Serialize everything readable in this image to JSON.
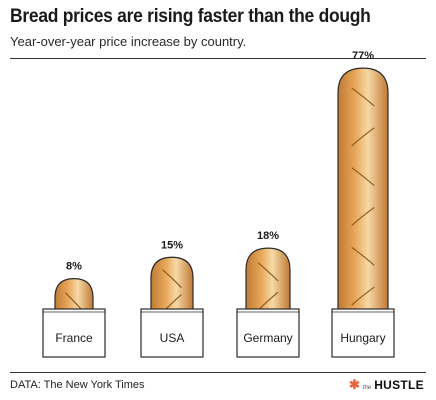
{
  "chart_data": {
    "type": "bar",
    "title": "Bread prices are rising faster than the dough",
    "subtitle": "Year-over-year price increase by country.",
    "categories": [
      "France",
      "USA",
      "Germany",
      "Hungary"
    ],
    "values": [
      8,
      15,
      18,
      77
    ],
    "value_labels": [
      "8%",
      "15%",
      "18%",
      "77%"
    ],
    "unit": "%",
    "xlabel": "",
    "ylabel": "",
    "grid": false,
    "colors": {
      "bread": "#e9a85a",
      "bread_dark": "#c07a35",
      "bread_light": "#f6d9a6",
      "outline": "#2b2b2b"
    }
  },
  "footer": {
    "source": "DATA: The New York Times",
    "brand_mark": "✱",
    "brand_small": "the",
    "brand_name": "HUSTLE"
  }
}
